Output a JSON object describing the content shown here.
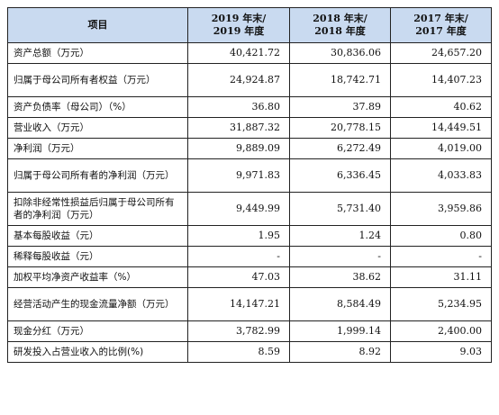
{
  "table": {
    "headers": [
      {
        "lines": [
          "项目"
        ]
      },
      {
        "lines": [
          "2019 年末/",
          "2019 年度"
        ]
      },
      {
        "lines": [
          "2018 年末/",
          "2018 年度"
        ]
      },
      {
        "lines": [
          "2017 年末/",
          "2017 年度"
        ]
      }
    ],
    "rows": [
      {
        "label": "资产总额（万元）",
        "values": [
          "40,421.72",
          "30,836.06",
          "24,657.20"
        ],
        "tall": false
      },
      {
        "label": "归属于母公司所有者权益（万元）",
        "values": [
          "24,924.87",
          "18,742.71",
          "14,407.23"
        ],
        "tall": true
      },
      {
        "label": "资产负债率（母公司）（%）",
        "values": [
          "36.80",
          "37.89",
          "40.62"
        ],
        "tall": false
      },
      {
        "label": "营业收入（万元）",
        "values": [
          "31,887.32",
          "20,778.15",
          "14,449.51"
        ],
        "tall": false
      },
      {
        "label": "净利润（万元）",
        "values": [
          "9,889.09",
          "6,272.49",
          "4,019.00"
        ],
        "tall": false
      },
      {
        "label": "归属于母公司所有者的净利润（万元）",
        "values": [
          "9,971.83",
          "6,336.45",
          "4,033.83"
        ],
        "tall": true
      },
      {
        "label": "扣除非经常性损益后归属于母公司所有者的净利润（万元）",
        "values": [
          "9,449.99",
          "5,731.40",
          "3,959.86"
        ],
        "tall": true
      },
      {
        "label": "基本每股收益（元）",
        "values": [
          "1.95",
          "1.24",
          "0.80"
        ],
        "tall": false
      },
      {
        "label": "稀释每股收益（元）",
        "values": [
          "-",
          "-",
          "-"
        ],
        "tall": false
      },
      {
        "label": "加权平均净资产收益率（%）",
        "values": [
          "47.03",
          "38.62",
          "31.11"
        ],
        "tall": false
      },
      {
        "label": "经营活动产生的现金流量净额（万元）",
        "values": [
          "14,147.21",
          "8,584.49",
          "5,234.95"
        ],
        "tall": true
      },
      {
        "label": "现金分红（万元）",
        "values": [
          "3,782.99",
          "1,999.14",
          "2,400.00"
        ],
        "tall": false
      },
      {
        "label": "研发投入占营业收入的比例(%)",
        "values": [
          "8.59",
          "8.92",
          "9.03"
        ],
        "tall": false
      }
    ]
  },
  "colors": {
    "header_bg": "#c9daf0",
    "border": "#222222"
  }
}
